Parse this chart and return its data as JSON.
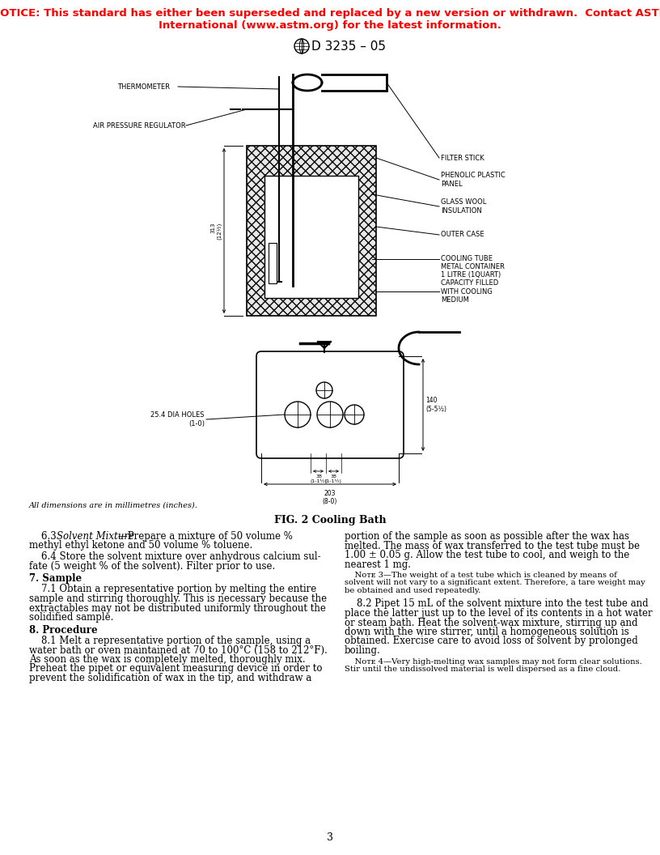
{
  "notice_line1": "NOTICE: This standard has either been superseded and replaced by a new version or withdrawn.  Contact ASTM",
  "notice_line2": "International (www.astm.org) for the latest information.",
  "notice_color": "#ff0000",
  "title_text": "D 3235 – 05",
  "fig_caption": "FIG. 2 Cooling Bath",
  "dim_note": "All dimensions are in millimetres (inches).",
  "page_number": "3",
  "background_color": "#ffffff"
}
